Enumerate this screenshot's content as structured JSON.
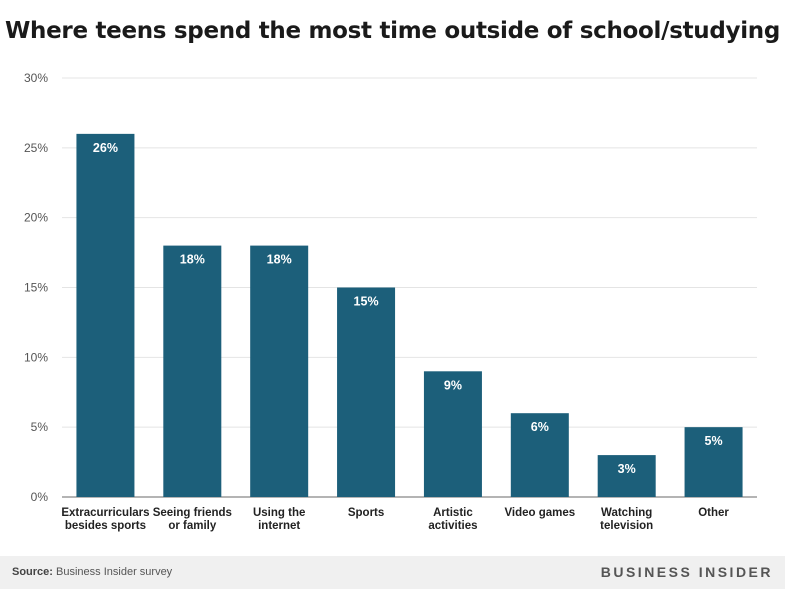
{
  "title": "Where teens spend the most time outside of school/studying",
  "colors": {
    "bar": "#1c5f7a",
    "grid": "#e4e4e4",
    "axis": "#888888",
    "text": "#222222"
  },
  "chart_data": {
    "type": "bar",
    "title": "Where teens spend the most time outside of school/studying",
    "xlabel": "",
    "ylabel": "",
    "ylim": [
      0,
      30
    ],
    "grid": true,
    "yticks": [
      "0%",
      "5%",
      "10%",
      "15%",
      "20%",
      "25%",
      "30%"
    ],
    "ytick_values": [
      0,
      5,
      10,
      15,
      20,
      25,
      30
    ],
    "categories": [
      [
        "Extracurriculars",
        "besides sports"
      ],
      [
        "Seeing friends",
        "or family"
      ],
      [
        "Using the",
        "internet"
      ],
      [
        "Sports"
      ],
      [
        "Artistic",
        "activities"
      ],
      [
        "Video games"
      ],
      [
        "Watching",
        "television"
      ],
      [
        "Other"
      ]
    ],
    "values": [
      26,
      18,
      18,
      15,
      9,
      6,
      3,
      5
    ],
    "data_labels": [
      "26%",
      "18%",
      "18%",
      "15%",
      "9%",
      "6%",
      "3%",
      "5%"
    ]
  },
  "footer": {
    "source_label": "Source:",
    "source_text": " Business Insider survey",
    "brand": "BUSINESS INSIDER"
  }
}
